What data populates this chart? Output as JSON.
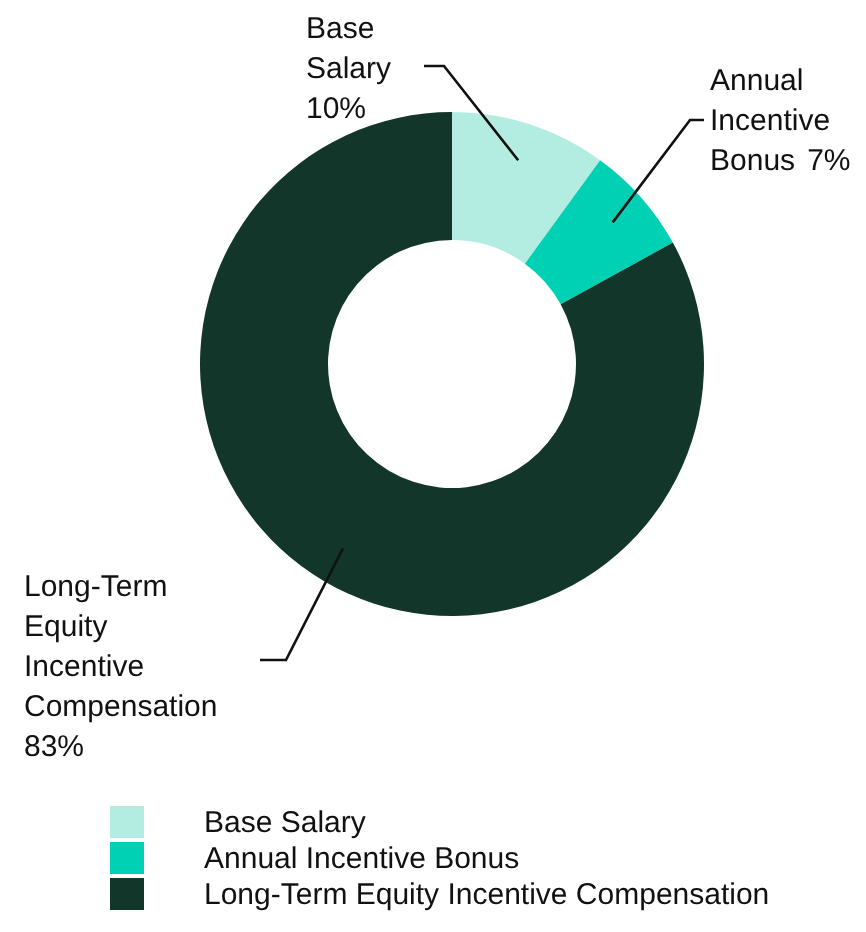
{
  "chart_data": {
    "type": "donut",
    "categories": [
      "Base Salary",
      "Annual Incentive Bonus",
      "Long-Term Equity Incentive Compensation"
    ],
    "values": [
      10,
      7,
      83
    ],
    "colors": [
      "#b3ede2",
      "#00d1b5",
      "#12372a"
    ],
    "value_labels": [
      "10%",
      "7%",
      "83%"
    ],
    "legend": "bottom"
  }
}
